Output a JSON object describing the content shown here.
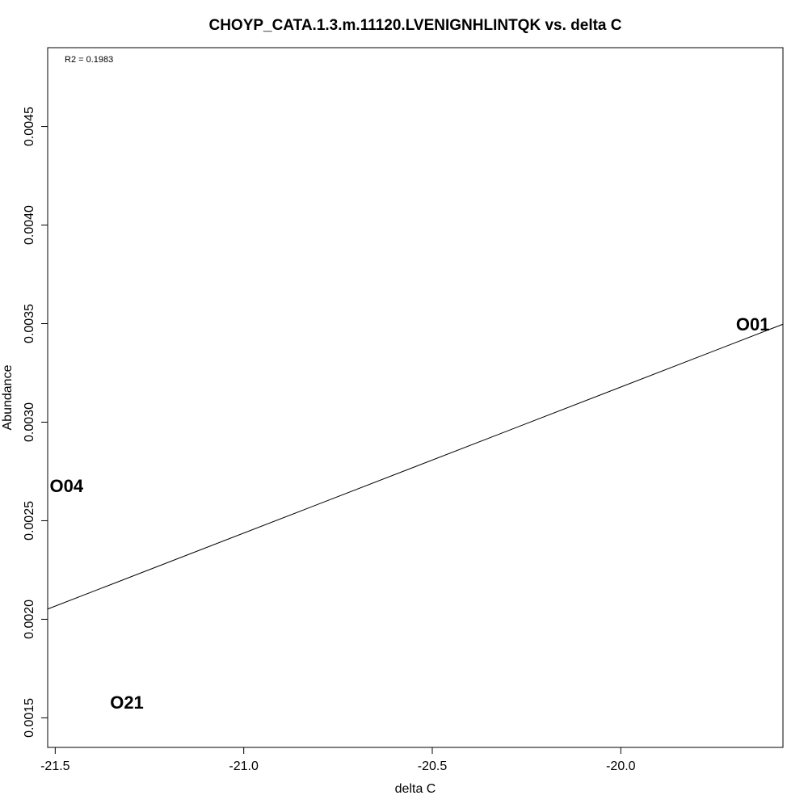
{
  "chart_data": {
    "type": "scatter",
    "title": "CHOYP_CATA.1.3.m.11120.LVENIGNHLINTQK vs. delta C",
    "xlabel": "delta C",
    "ylabel": "Abundance",
    "xlim": [
      -21.52,
      -19.57
    ],
    "ylim": [
      0.00135,
      0.0049
    ],
    "x_ticks": [
      -21.5,
      -21.0,
      -20.5,
      -20.0
    ],
    "x_tick_labels": [
      "-21.5",
      "-21.0",
      "-20.5",
      "-20.0"
    ],
    "y_ticks": [
      0.0015,
      0.002,
      0.0025,
      0.003,
      0.0035,
      0.004,
      0.0045
    ],
    "y_tick_labels": [
      "0.0015",
      "0.0020",
      "0.0025",
      "0.0030",
      "0.0035",
      "0.0040",
      "0.0045"
    ],
    "points": [
      {
        "label": "O01",
        "x": -19.65,
        "y": 0.00349
      },
      {
        "label": "O04",
        "x": -21.47,
        "y": 0.00267
      },
      {
        "label": "O21",
        "x": -21.31,
        "y": 0.00157
      }
    ],
    "regression_line": {
      "x": [
        -21.52,
        -19.57
      ],
      "y": [
        0.002052,
        0.003497
      ]
    },
    "annotation": "R2 = 0.1983",
    "grid": false,
    "legend": "none"
  }
}
